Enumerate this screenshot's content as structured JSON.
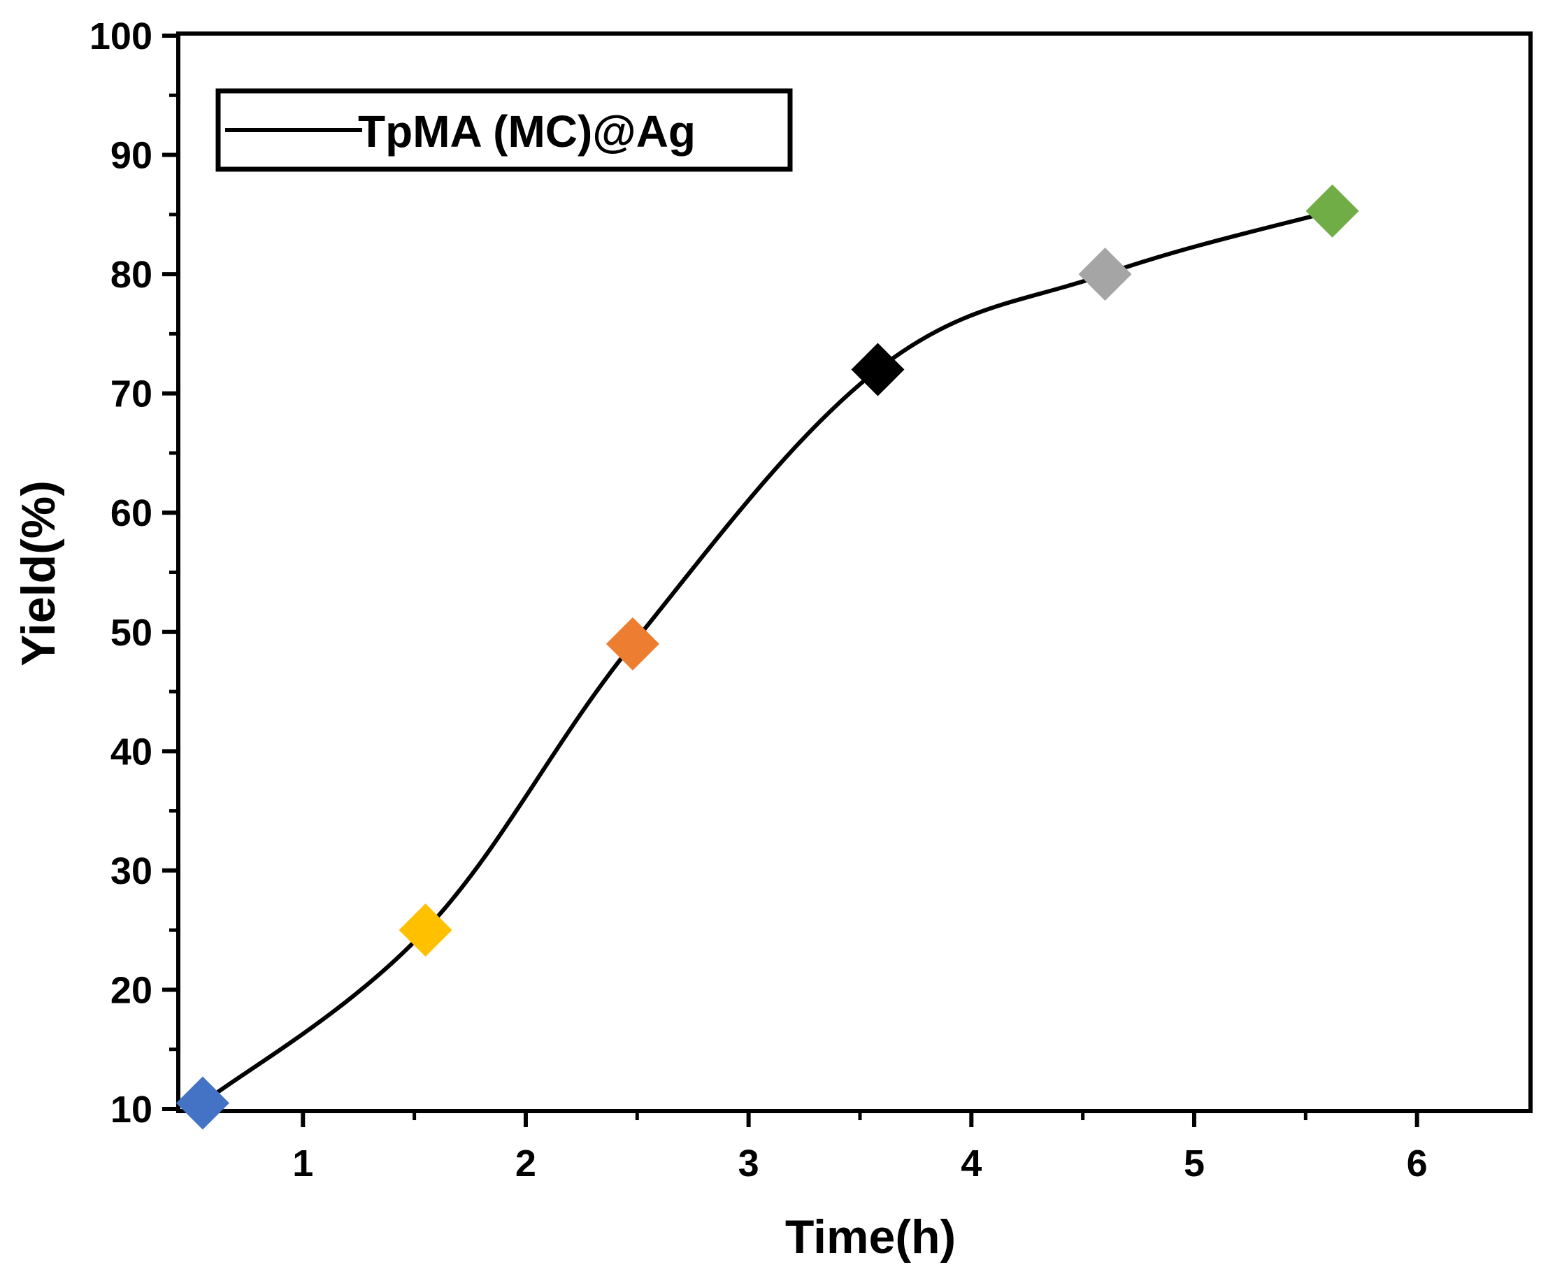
{
  "chart_data": {
    "type": "line",
    "title": "",
    "xlabel": "Time(h)",
    "ylabel": "Yield(%)",
    "xlim": [
      0.45,
      6.5
    ],
    "ylim": [
      10,
      100
    ],
    "xticks": [
      1,
      2,
      3,
      4,
      5,
      6
    ],
    "yticks": [
      10,
      20,
      30,
      40,
      50,
      60,
      70,
      80,
      90,
      100
    ],
    "legend": {
      "position": "top-left",
      "entries": [
        "TpMA (MC)@Ag"
      ]
    },
    "series": [
      {
        "name": "TpMA (MC)@Ag",
        "line_color": "#000000",
        "marker": "diamond",
        "points": [
          {
            "x": 0.55,
            "y": 10.5,
            "color": "#4472C4"
          },
          {
            "x": 1.55,
            "y": 25,
            "color": "#FFC000"
          },
          {
            "x": 2.48,
            "y": 49,
            "color": "#ED7D31"
          },
          {
            "x": 3.58,
            "y": 72,
            "color": "#000000"
          },
          {
            "x": 4.6,
            "y": 80,
            "color": "#A5A5A5"
          },
          {
            "x": 5.62,
            "y": 85.3,
            "color": "#70AD47"
          }
        ]
      }
    ]
  }
}
